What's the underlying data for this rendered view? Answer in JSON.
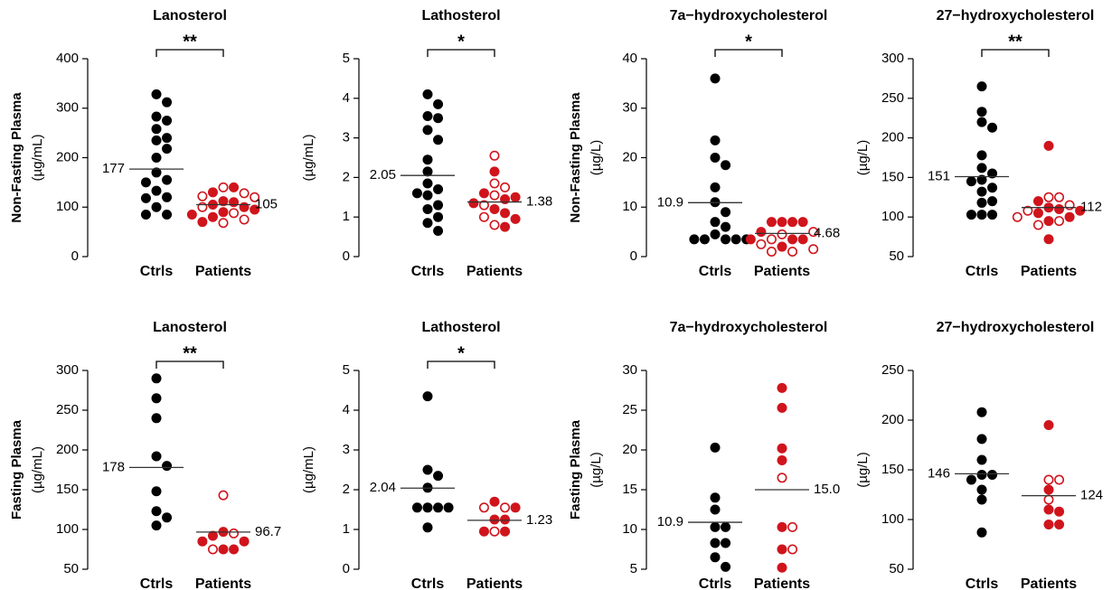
{
  "chart_data": [
    {
      "type": "strip",
      "title": "Lanosterol",
      "ylabel": "Non-Fasting Plasma",
      "yunit": "(µg/mL)",
      "categories": [
        "Ctrls",
        "Patients"
      ],
      "series": [
        {
          "color": "#000000",
          "values": [
            328,
            312,
            283,
            275,
            258,
            240,
            235,
            218,
            200,
            170,
            155,
            150,
            133,
            120,
            118,
            100,
            85,
            85
          ]
        },
        {
          "color": "#d0141c",
          "values": [
            140,
            140,
            130,
            128,
            122,
            120,
            112,
            110,
            105,
            100,
            100,
            95,
            90,
            88,
            85,
            80,
            75,
            70,
            68
          ],
          "filled": [
            false,
            true,
            true,
            false,
            false,
            false,
            true,
            true,
            true,
            true,
            false,
            true,
            true,
            false,
            true,
            true,
            false,
            true,
            false
          ]
        }
      ],
      "means": [
        177,
        105
      ],
      "significance": "**",
      "ylim": [
        0,
        400
      ],
      "yticks": [
        0,
        100,
        200,
        300,
        400
      ]
    },
    {
      "type": "strip",
      "title": "Lathosterol",
      "yunit": "(µg/mL)",
      "categories": [
        "Ctrls",
        "Patients"
      ],
      "series": [
        {
          "color": "#000000",
          "values": [
            4.1,
            3.85,
            3.55,
            3.5,
            3.2,
            2.95,
            2.45,
            2.15,
            1.85,
            1.7,
            1.6,
            1.55,
            1.3,
            1.2,
            1.0,
            0.85,
            0.65
          ]
        },
        {
          "color": "#d0141c",
          "values": [
            2.55,
            2.15,
            1.85,
            1.75,
            1.6,
            1.55,
            1.5,
            1.45,
            1.35,
            1.3,
            1.2,
            1.1,
            1.0,
            0.95,
            0.8,
            0.75
          ],
          "filled": [
            false,
            true,
            false,
            false,
            true,
            false,
            true,
            true,
            true,
            false,
            true,
            true,
            false,
            true,
            false,
            true
          ]
        }
      ],
      "means": [
        2.05,
        1.38
      ],
      "significance": "*",
      "ylim": [
        0,
        5
      ],
      "yticks": [
        0,
        1,
        2,
        3,
        4,
        5
      ]
    },
    {
      "type": "strip",
      "title": "7a−hydroxycholesterol",
      "ylabel": "Non-Fasting Plasma",
      "yunit": "(µg/L)",
      "categories": [
        "Ctrls",
        "Patients"
      ],
      "series": [
        {
          "color": "#000000",
          "values": [
            36,
            23.5,
            20,
            18.5,
            14,
            11,
            9,
            7,
            6,
            4.5,
            3.5,
            3.5,
            3.5,
            3.5,
            3.5
          ]
        },
        {
          "color": "#d0141c",
          "values": [
            7,
            7,
            7,
            7,
            5,
            5,
            4.5,
            3.5,
            3.5,
            3.5,
            3.5,
            2.5,
            2,
            1.5,
            1,
            1
          ],
          "filled": [
            true,
            true,
            true,
            true,
            true,
            false,
            false,
            true,
            false,
            true,
            true,
            false,
            true,
            false,
            false,
            false
          ]
        }
      ],
      "means": [
        10.9,
        4.68
      ],
      "significance": "*",
      "ylim": [
        0,
        40
      ],
      "yticks": [
        0,
        10,
        20,
        30,
        40
      ]
    },
    {
      "type": "strip",
      "title": "27−hydroxycholesterol",
      "yunit": "(µg/L)",
      "categories": [
        "Ctrls",
        "Patients"
      ],
      "series": [
        {
          "color": "#000000",
          "values": [
            265,
            233,
            220,
            213,
            178,
            162,
            155,
            147,
            145,
            137,
            132,
            120,
            118,
            103,
            103,
            103
          ]
        },
        {
          "color": "#d0141c",
          "values": [
            190,
            125,
            125,
            120,
            115,
            112,
            110,
            108,
            108,
            105,
            100,
            100,
            95,
            95,
            90,
            72
          ],
          "filled": [
            true,
            false,
            false,
            true,
            false,
            true,
            true,
            false,
            true,
            true,
            true,
            false,
            true,
            false,
            false,
            true
          ]
        }
      ],
      "means": [
        151,
        112
      ],
      "significance": "**",
      "ylim": [
        50,
        300
      ],
      "yticks": [
        50,
        100,
        150,
        200,
        250,
        300
      ]
    },
    {
      "type": "strip",
      "title": "Lanosterol",
      "ylabel": "Fasting Plasma",
      "yunit": "(µg/mL)",
      "categories": [
        "Ctrls",
        "Patients"
      ],
      "series": [
        {
          "color": "#000000",
          "values": [
            290,
            265,
            240,
            192,
            180,
            148,
            123,
            115,
            105
          ]
        },
        {
          "color": "#d0141c",
          "values": [
            143,
            97,
            95,
            92,
            85,
            85,
            75,
            75,
            75
          ],
          "filled": [
            false,
            true,
            false,
            true,
            true,
            true,
            true,
            true,
            false
          ]
        }
      ],
      "means": [
        178,
        96.7
      ],
      "significance": "**",
      "ylim": [
        50,
        300
      ],
      "yticks": [
        50,
        100,
        150,
        200,
        250,
        300
      ]
    },
    {
      "type": "strip",
      "title": "Lathosterol",
      "yunit": "(µg/mL)",
      "categories": [
        "Ctrls",
        "Patients"
      ],
      "series": [
        {
          "color": "#000000",
          "values": [
            4.35,
            2.5,
            2.35,
            2.05,
            1.55,
            1.55,
            1.55,
            1.55,
            1.05
          ]
        },
        {
          "color": "#d0141c",
          "values": [
            1.7,
            1.55,
            1.55,
            1.55,
            1.25,
            1.25,
            0.95,
            0.95,
            0.95
          ],
          "filled": [
            true,
            false,
            false,
            true,
            true,
            true,
            false,
            true,
            true
          ]
        }
      ],
      "means": [
        2.04,
        1.23
      ],
      "significance": "*",
      "ylim": [
        0,
        5
      ],
      "yticks": [
        0,
        1,
        2,
        3,
        4,
        5
      ]
    },
    {
      "type": "strip",
      "title": "7a−hydroxycholesterol",
      "ylabel": "Fasting Plasma",
      "yunit": "(µg/L)",
      "categories": [
        "Ctrls",
        "Patients"
      ],
      "series": [
        {
          "color": "#000000",
          "values": [
            20.3,
            14,
            12.5,
            10.3,
            10.3,
            8.3,
            8.3,
            6.5,
            5.3
          ]
        },
        {
          "color": "#d0141c",
          "values": [
            27.8,
            25.3,
            20.2,
            18.7,
            16.5,
            10.3,
            10.3,
            7.5,
            7.5,
            5.2
          ],
          "filled": [
            true,
            true,
            true,
            true,
            false,
            true,
            false,
            true,
            false,
            true
          ]
        }
      ],
      "means": [
        10.9,
        15.0
      ],
      "mean_labels": [
        "10.9",
        "15.0"
      ],
      "ylim": [
        5,
        30
      ],
      "yticks": [
        5,
        10,
        15,
        20,
        25,
        30
      ]
    },
    {
      "type": "strip",
      "title": "27−hydroxycholesterol",
      "yunit": "(µg/L)",
      "categories": [
        "Ctrls",
        "Patients"
      ],
      "series": [
        {
          "color": "#000000",
          "values": [
            208,
            181,
            160,
            145,
            145,
            140,
            130,
            120,
            87
          ]
        },
        {
          "color": "#d0141c",
          "values": [
            195,
            140,
            140,
            130,
            120,
            110,
            108,
            95,
            95
          ],
          "filled": [
            true,
            false,
            false,
            true,
            false,
            true,
            true,
            true,
            true
          ]
        }
      ],
      "means": [
        146,
        124
      ],
      "ylim": [
        50,
        250
      ],
      "yticks": [
        50,
        100,
        150,
        200,
        250
      ]
    }
  ]
}
